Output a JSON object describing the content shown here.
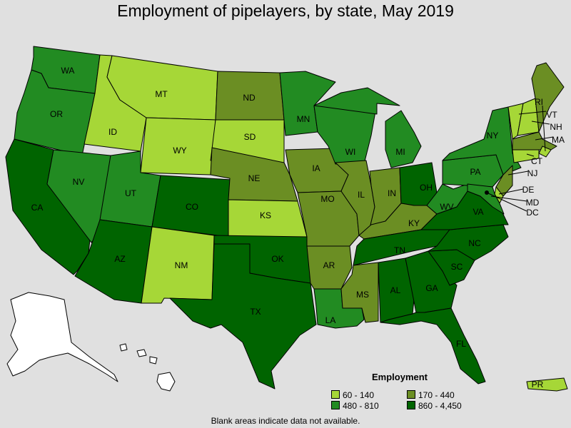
{
  "title": "Employment of pipelayers, by state, May 2019",
  "colors": {
    "background": "#e0e0e0",
    "no_data": "#ffffff",
    "range_60_140": "#a6d737",
    "range_170_440": "#6b8e23",
    "range_480_810": "#228b22",
    "range_860_4450": "#006400"
  },
  "legend": {
    "title": "Employment",
    "items": [
      {
        "label": "60 - 140",
        "color": "#a6d737"
      },
      {
        "label": "170 - 440",
        "color": "#6b8e23"
      },
      {
        "label": "480 - 810",
        "color": "#228b22"
      },
      {
        "label": "860 - 4,450",
        "color": "#006400"
      }
    ]
  },
  "footnote": "Blank areas indicate data not available.",
  "states": [
    {
      "abbr": "WA",
      "range": "480 - 810"
    },
    {
      "abbr": "OR",
      "range": "480 - 810"
    },
    {
      "abbr": "CA",
      "range": "860 - 4,450"
    },
    {
      "abbr": "NV",
      "range": "480 - 810"
    },
    {
      "abbr": "ID",
      "range": "60 - 140"
    },
    {
      "abbr": "MT",
      "range": "60 - 140"
    },
    {
      "abbr": "WY",
      "range": "60 - 140"
    },
    {
      "abbr": "UT",
      "range": "480 - 810"
    },
    {
      "abbr": "AZ",
      "range": "860 - 4,450"
    },
    {
      "abbr": "CO",
      "range": "860 - 4,450"
    },
    {
      "abbr": "NM",
      "range": "60 - 140"
    },
    {
      "abbr": "ND",
      "range": "170 - 440"
    },
    {
      "abbr": "SD",
      "range": "60 - 140"
    },
    {
      "abbr": "NE",
      "range": "170 - 440"
    },
    {
      "abbr": "KS",
      "range": "60 - 140"
    },
    {
      "abbr": "OK",
      "range": "860 - 4,450"
    },
    {
      "abbr": "TX",
      "range": "860 - 4,450"
    },
    {
      "abbr": "MN",
      "range": "480 - 810"
    },
    {
      "abbr": "IA",
      "range": "170 - 440"
    },
    {
      "abbr": "MO",
      "range": "170 - 440"
    },
    {
      "abbr": "AR",
      "range": "170 - 440"
    },
    {
      "abbr": "LA",
      "range": "480 - 810"
    },
    {
      "abbr": "WI",
      "range": "480 - 810"
    },
    {
      "abbr": "IL",
      "range": "170 - 440"
    },
    {
      "abbr": "MI",
      "range": "480 - 810"
    },
    {
      "abbr": "IN",
      "range": "170 - 440"
    },
    {
      "abbr": "OH",
      "range": "860 - 4,450"
    },
    {
      "abbr": "KY",
      "range": "170 - 440"
    },
    {
      "abbr": "TN",
      "range": "860 - 4,450"
    },
    {
      "abbr": "MS",
      "range": "170 - 440"
    },
    {
      "abbr": "AL",
      "range": "860 - 4,450"
    },
    {
      "abbr": "GA",
      "range": "860 - 4,450"
    },
    {
      "abbr": "FL",
      "range": "860 - 4,450"
    },
    {
      "abbr": "SC",
      "range": "860 - 4,450"
    },
    {
      "abbr": "NC",
      "range": "860 - 4,450"
    },
    {
      "abbr": "VA",
      "range": "860 - 4,450"
    },
    {
      "abbr": "WV",
      "range": "480 - 810"
    },
    {
      "abbr": "PA",
      "range": "480 - 810"
    },
    {
      "abbr": "NY",
      "range": "480 - 810"
    },
    {
      "abbr": "VT",
      "range": "60 - 140"
    },
    {
      "abbr": "NH",
      "range": "60 - 140"
    },
    {
      "abbr": "ME",
      "range": "170 - 440"
    },
    {
      "abbr": "MA",
      "range": "170 - 440"
    },
    {
      "abbr": "RI",
      "range": "60 - 140"
    },
    {
      "abbr": "CT",
      "range": "60 - 140"
    },
    {
      "abbr": "NJ",
      "range": "170 - 440"
    },
    {
      "abbr": "DE",
      "range": "60 - 140"
    },
    {
      "abbr": "MD",
      "range": "480 - 810"
    },
    {
      "abbr": "DC",
      "range": "60 - 140"
    },
    {
      "abbr": "PR",
      "range": "60 - 140"
    },
    {
      "abbr": "AK",
      "range": "no data"
    },
    {
      "abbr": "HI",
      "range": "no data"
    }
  ]
}
